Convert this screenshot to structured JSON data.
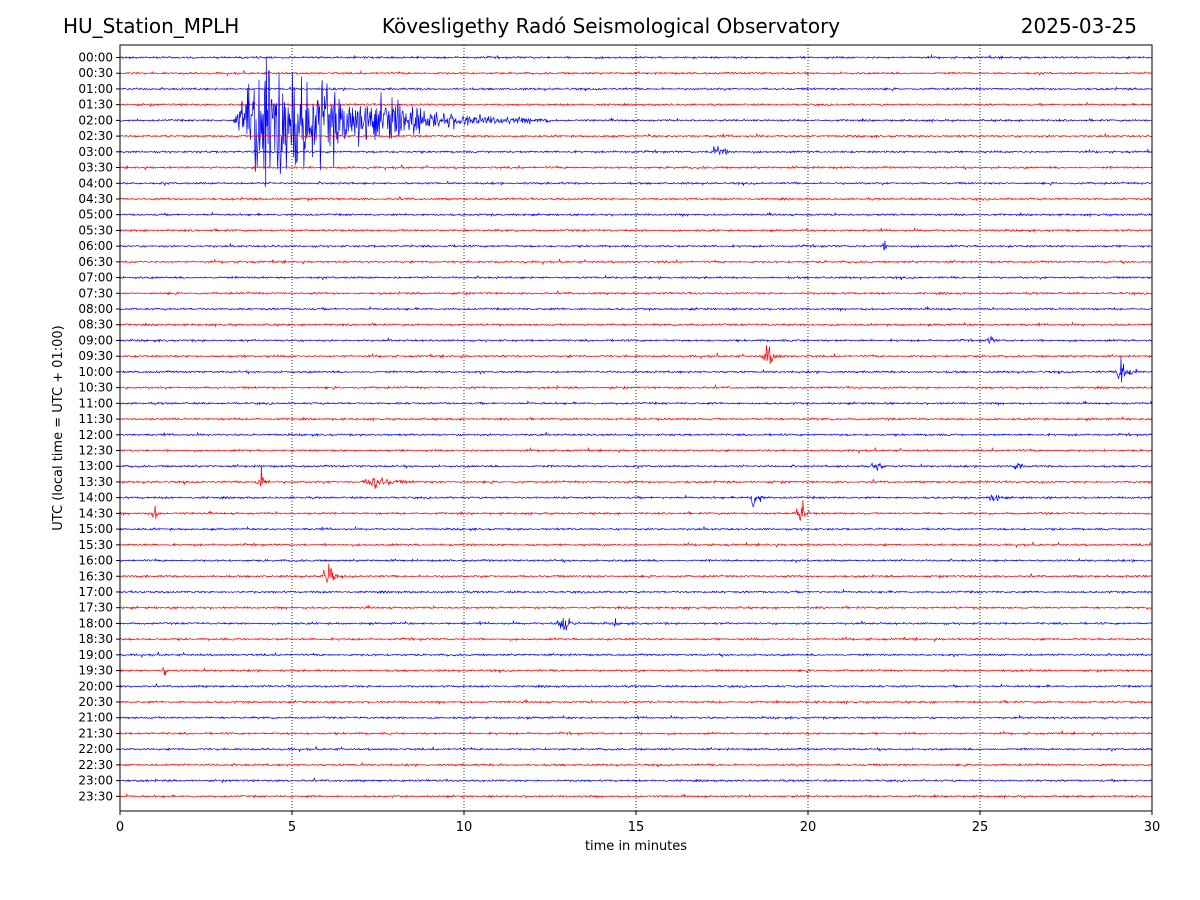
{
  "header": {
    "station": "HU_Station_MPLH",
    "observatory": "Kövesligethy Radó Seismological Observatory",
    "date": "2025-03-25"
  },
  "chart_data": {
    "type": "line",
    "title": "Kövesligethy Radó Seismological Observatory",
    "xlabel": "time in minutes",
    "ylabel": "UTC (local time = UTC + 01:00)",
    "xlim": [
      0,
      30
    ],
    "x_ticks": [
      "0",
      "5",
      "10",
      "15",
      "20",
      "25",
      "30"
    ],
    "x_tick_values": [
      0,
      5,
      10,
      15,
      20,
      25,
      30
    ],
    "grid": "vertical dotted at x ticks",
    "row_labels": [
      "00:00",
      "00:30",
      "01:00",
      "01:30",
      "02:00",
      "02:30",
      "03:00",
      "03:30",
      "04:00",
      "04:30",
      "05:00",
      "05:30",
      "06:00",
      "06:30",
      "07:00",
      "07:30",
      "08:00",
      "08:30",
      "09:00",
      "09:30",
      "10:00",
      "10:30",
      "11:00",
      "11:30",
      "12:00",
      "12:30",
      "13:00",
      "13:30",
      "14:00",
      "14:30",
      "15:00",
      "15:30",
      "16:00",
      "16:30",
      "17:00",
      "17:30",
      "18:00",
      "18:30",
      "19:00",
      "19:30",
      "20:00",
      "20:30",
      "21:00",
      "21:30",
      "22:00",
      "22:30",
      "23:00",
      "23:30"
    ],
    "trace_colors": [
      "#0000ff",
      "#ff0000"
    ],
    "events": [
      {
        "row": "02:00",
        "start_min": 3.2,
        "peak_min": 4.0,
        "end_min": 12.5,
        "amplitude": 9.0,
        "type": "earthquake"
      },
      {
        "row": "02:00",
        "start_min": 7.4,
        "peak_min": 8.0,
        "end_min": 9.5,
        "amplitude": 1.2,
        "type": "secondary"
      },
      {
        "row": "03:00",
        "start_min": 17.1,
        "peak_min": 17.3,
        "end_min": 18.0,
        "amplitude": 1.0,
        "type": "burst"
      },
      {
        "row": "06:00",
        "start_min": 22.1,
        "peak_min": 22.25,
        "end_min": 22.4,
        "amplitude": 0.5,
        "type": "burst"
      },
      {
        "row": "09:00",
        "start_min": 25.1,
        "peak_min": 25.3,
        "end_min": 25.6,
        "amplitude": 0.4,
        "type": "burst"
      },
      {
        "row": "09:30",
        "start_min": 18.6,
        "peak_min": 18.8,
        "end_min": 19.4,
        "amplitude": 1.4,
        "type": "burst"
      },
      {
        "row": "10:00",
        "start_min": 28.9,
        "peak_min": 29.1,
        "end_min": 29.8,
        "amplitude": 1.9,
        "type": "burst"
      },
      {
        "row": "13:00",
        "start_min": 21.5,
        "peak_min": 22.0,
        "end_min": 22.4,
        "amplitude": 0.6,
        "type": "burst"
      },
      {
        "row": "13:00",
        "start_min": 25.9,
        "peak_min": 26.1,
        "end_min": 26.4,
        "amplitude": 0.5,
        "type": "burst"
      },
      {
        "row": "13:30",
        "start_min": 3.9,
        "peak_min": 4.1,
        "end_min": 4.5,
        "amplitude": 1.3,
        "type": "burst"
      },
      {
        "row": "13:30",
        "start_min": 6.9,
        "peak_min": 7.4,
        "end_min": 8.8,
        "amplitude": 0.7,
        "type": "burst"
      },
      {
        "row": "14:00",
        "start_min": 18.2,
        "peak_min": 18.5,
        "end_min": 18.8,
        "amplitude": 2.1,
        "type": "burst"
      },
      {
        "row": "14:00",
        "start_min": 25.2,
        "peak_min": 25.4,
        "end_min": 25.8,
        "amplitude": 0.7,
        "type": "burst"
      },
      {
        "row": "14:30",
        "start_min": 0.8,
        "peak_min": 1.0,
        "end_min": 1.3,
        "amplitude": 0.9,
        "type": "burst"
      },
      {
        "row": "14:30",
        "start_min": 19.5,
        "peak_min": 19.9,
        "end_min": 20.1,
        "amplitude": 1.6,
        "type": "burst"
      },
      {
        "row": "16:30",
        "start_min": 5.7,
        "peak_min": 6.1,
        "end_min": 6.4,
        "amplitude": 1.6,
        "type": "burst"
      },
      {
        "row": "18:00",
        "start_min": 12.6,
        "peak_min": 12.9,
        "end_min": 13.4,
        "amplitude": 1.4,
        "type": "burst"
      },
      {
        "row": "18:00",
        "start_min": 14.3,
        "peak_min": 14.4,
        "end_min": 14.6,
        "amplitude": 0.4,
        "type": "burst"
      },
      {
        "row": "19:30",
        "start_min": 1.2,
        "peak_min": 1.3,
        "end_min": 1.45,
        "amplitude": 0.8,
        "type": "burst"
      }
    ]
  }
}
